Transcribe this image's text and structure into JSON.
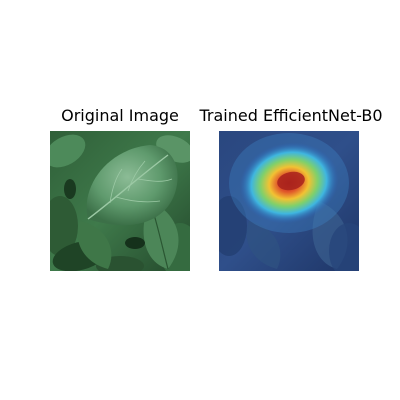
{
  "panels": [
    {
      "title": "Original Image"
    },
    {
      "title": "Trained EfficientNet-B0"
    }
  ],
  "colors": {
    "background": "#ffffff",
    "leaf_dark": "#1f4a2a",
    "leaf_mid": "#3f7f52",
    "leaf_light": "#7fb08c",
    "heatmap_base": "#233a78",
    "heatmap_hot": "#b3261e"
  }
}
